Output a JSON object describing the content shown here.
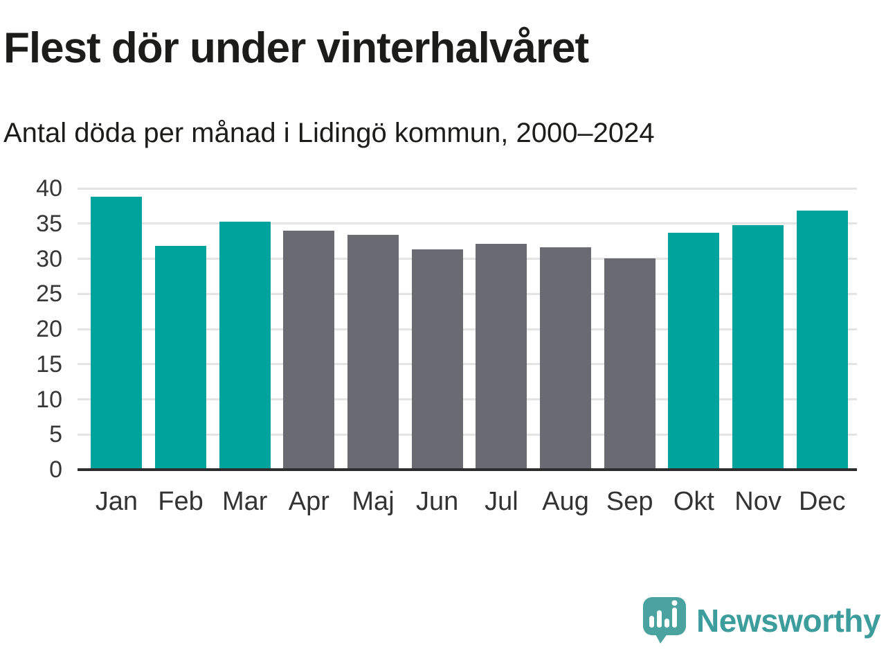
{
  "chart_data": {
    "type": "bar",
    "title": "Flest dör under vinterhalvåret",
    "subtitle": "Antal döda per månad i Lidingö kommun, 2000–2024",
    "categories": [
      "Jan",
      "Feb",
      "Mar",
      "Apr",
      "Maj",
      "Jun",
      "Jul",
      "Aug",
      "Sep",
      "Okt",
      "Nov",
      "Dec"
    ],
    "values": [
      38.8,
      31.8,
      35.3,
      34.0,
      33.4,
      31.3,
      32.1,
      31.6,
      30.1,
      33.7,
      34.8,
      36.8
    ],
    "highlight_categories": [
      "Jan",
      "Feb",
      "Mar",
      "Okt",
      "Nov",
      "Dec"
    ],
    "colors": {
      "highlight": "#00a39b",
      "base": "#6a6a72",
      "gridline": "#e4e4e4",
      "axis": "#2d2d2d"
    },
    "xlabel": "",
    "ylabel": "",
    "ylim": [
      0,
      40
    ],
    "yticks": [
      0,
      5,
      10,
      15,
      20,
      25,
      30,
      35,
      40
    ],
    "grid": true,
    "legend": "none"
  },
  "footer": {
    "brand": "Newsworthy",
    "brand_color": "#3d9d9c",
    "logo_color": "#4ba3a0"
  }
}
